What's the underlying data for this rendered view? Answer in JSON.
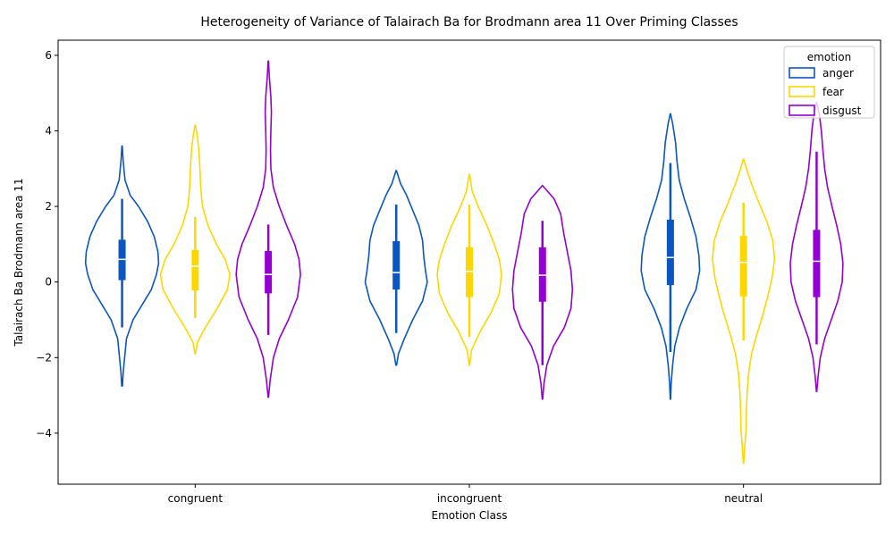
{
  "chart_data": {
    "type": "violin",
    "title": "Heterogeneity of Variance of Talairach Ba for Brodmann area 11 Over Priming Classes",
    "xlabel": "Emotion Class",
    "ylabel": "Talairach Ba Brodmann area 11",
    "categories": [
      "congruent",
      "incongruent",
      "neutral"
    ],
    "ylim": [
      -5.35,
      6.4
    ],
    "yticks": [
      -4,
      -2,
      0,
      2,
      4,
      6
    ],
    "yticks_labels": [
      "−4",
      "−2",
      "0",
      "2",
      "4",
      "6"
    ],
    "legend": {
      "title": "emotion",
      "position": "top-right"
    },
    "series": [
      {
        "name": "anger",
        "color": "#0b55c4",
        "violins": [
          {
            "min": -2.75,
            "max": 3.6,
            "q1": 0.05,
            "median": 0.6,
            "q3": 1.12,
            "whisker_low": -1.2,
            "whisker_high": 2.2,
            "density": [
              [
                -2.75,
                0.01
              ],
              [
                -2.4,
                0.03
              ],
              [
                -2.0,
                0.07
              ],
              [
                -1.5,
                0.12
              ],
              [
                -1.0,
                0.3
              ],
              [
                -0.6,
                0.55
              ],
              [
                -0.2,
                0.8
              ],
              [
                0.2,
                0.94
              ],
              [
                0.5,
                1.0
              ],
              [
                0.8,
                0.98
              ],
              [
                1.2,
                0.88
              ],
              [
                1.6,
                0.7
              ],
              [
                2.0,
                0.45
              ],
              [
                2.3,
                0.22
              ],
              [
                2.7,
                0.08
              ],
              [
                3.2,
                0.03
              ],
              [
                3.6,
                0.005
              ]
            ]
          },
          {
            "min": -2.2,
            "max": 2.95,
            "q1": -0.2,
            "median": 0.25,
            "q3": 1.08,
            "whisker_low": -1.35,
            "whisker_high": 2.05,
            "density": [
              [
                -2.2,
                0.01
              ],
              [
                -1.9,
                0.06
              ],
              [
                -1.5,
                0.22
              ],
              [
                -1.0,
                0.45
              ],
              [
                -0.5,
                0.72
              ],
              [
                0.0,
                0.85
              ],
              [
                0.3,
                0.8
              ],
              [
                0.7,
                0.75
              ],
              [
                1.1,
                0.72
              ],
              [
                1.5,
                0.62
              ],
              [
                1.9,
                0.45
              ],
              [
                2.3,
                0.28
              ],
              [
                2.6,
                0.12
              ],
              [
                2.95,
                0.005
              ]
            ]
          },
          {
            "min": -3.1,
            "max": 4.45,
            "q1": -0.08,
            "median": 0.65,
            "q3": 1.65,
            "whisker_low": -1.85,
            "whisker_high": 3.15,
            "density": [
              [
                -3.1,
                0.005
              ],
              [
                -2.7,
                0.02
              ],
              [
                -2.2,
                0.06
              ],
              [
                -1.7,
                0.12
              ],
              [
                -1.2,
                0.25
              ],
              [
                -0.7,
                0.45
              ],
              [
                -0.2,
                0.7
              ],
              [
                0.3,
                0.8
              ],
              [
                0.7,
                0.78
              ],
              [
                1.2,
                0.7
              ],
              [
                1.7,
                0.55
              ],
              [
                2.2,
                0.38
              ],
              [
                2.7,
                0.24
              ],
              [
                3.2,
                0.18
              ],
              [
                3.7,
                0.14
              ],
              [
                4.2,
                0.06
              ],
              [
                4.45,
                0.005
              ]
            ]
          }
        ]
      },
      {
        "name": "fear",
        "color": "#ffd700",
        "violins": [
          {
            "min": -1.9,
            "max": 4.15,
            "q1": -0.22,
            "median": 0.42,
            "q3": 0.85,
            "whisker_low": -0.95,
            "whisker_high": 1.72,
            "density": [
              [
                -1.9,
                0.005
              ],
              [
                -1.6,
                0.06
              ],
              [
                -1.2,
                0.28
              ],
              [
                -0.7,
                0.6
              ],
              [
                -0.2,
                0.88
              ],
              [
                0.2,
                0.95
              ],
              [
                0.6,
                0.82
              ],
              [
                1.0,
                0.58
              ],
              [
                1.5,
                0.35
              ],
              [
                2.0,
                0.2
              ],
              [
                2.5,
                0.15
              ],
              [
                3.0,
                0.13
              ],
              [
                3.5,
                0.1
              ],
              [
                3.9,
                0.05
              ],
              [
                4.15,
                0.005
              ]
            ]
          },
          {
            "min": -2.2,
            "max": 2.85,
            "q1": -0.4,
            "median": 0.28,
            "q3": 0.92,
            "whisker_low": -1.45,
            "whisker_high": 2.05,
            "density": [
              [
                -2.2,
                0.005
              ],
              [
                -1.8,
                0.06
              ],
              [
                -1.3,
                0.3
              ],
              [
                -0.8,
                0.6
              ],
              [
                -0.3,
                0.82
              ],
              [
                0.2,
                0.88
              ],
              [
                0.6,
                0.82
              ],
              [
                1.0,
                0.68
              ],
              [
                1.5,
                0.48
              ],
              [
                2.0,
                0.24
              ],
              [
                2.4,
                0.08
              ],
              [
                2.85,
                0.005
              ]
            ]
          },
          {
            "min": -4.8,
            "max": 3.25,
            "q1": -0.38,
            "median": 0.52,
            "q3": 1.22,
            "whisker_low": -1.55,
            "whisker_high": 2.1,
            "density": [
              [
                -4.8,
                0.005
              ],
              [
                -4.4,
                0.03
              ],
              [
                -3.9,
                0.07
              ],
              [
                -3.4,
                0.08
              ],
              [
                -2.9,
                0.1
              ],
              [
                -2.4,
                0.14
              ],
              [
                -1.9,
                0.22
              ],
              [
                -1.4,
                0.36
              ],
              [
                -0.9,
                0.52
              ],
              [
                -0.4,
                0.66
              ],
              [
                0.1,
                0.78
              ],
              [
                0.6,
                0.85
              ],
              [
                1.1,
                0.8
              ],
              [
                1.6,
                0.64
              ],
              [
                2.1,
                0.42
              ],
              [
                2.6,
                0.22
              ],
              [
                3.0,
                0.08
              ],
              [
                3.25,
                0.005
              ]
            ]
          }
        ]
      },
      {
        "name": "disgust",
        "color": "#9400d3",
        "violins": [
          {
            "min": -3.05,
            "max": 5.85,
            "q1": -0.3,
            "median": 0.2,
            "q3": 0.82,
            "whisker_low": -1.4,
            "whisker_high": 1.52,
            "density": [
              [
                -3.05,
                0.005
              ],
              [
                -2.6,
                0.05
              ],
              [
                -2.0,
                0.14
              ],
              [
                -1.5,
                0.3
              ],
              [
                -1.0,
                0.55
              ],
              [
                -0.4,
                0.8
              ],
              [
                0.2,
                0.88
              ],
              [
                0.6,
                0.84
              ],
              [
                1.0,
                0.72
              ],
              [
                1.5,
                0.5
              ],
              [
                2.0,
                0.3
              ],
              [
                2.5,
                0.14
              ],
              [
                3.0,
                0.07
              ],
              [
                3.5,
                0.06
              ],
              [
                4.0,
                0.07
              ],
              [
                4.5,
                0.085
              ],
              [
                4.9,
                0.07
              ],
              [
                5.4,
                0.03
              ],
              [
                5.85,
                0.005
              ]
            ]
          },
          {
            "min": -3.1,
            "max": 2.55,
            "q1": -0.52,
            "median": 0.18,
            "q3": 0.92,
            "whisker_low": -2.2,
            "whisker_high": 1.62,
            "density": [
              [
                -3.1,
                0.005
              ],
              [
                -2.7,
                0.04
              ],
              [
                -2.2,
                0.12
              ],
              [
                -1.7,
                0.3
              ],
              [
                -1.2,
                0.6
              ],
              [
                -0.7,
                0.78
              ],
              [
                -0.2,
                0.82
              ],
              [
                0.3,
                0.78
              ],
              [
                0.8,
                0.68
              ],
              [
                1.3,
                0.58
              ],
              [
                1.8,
                0.5
              ],
              [
                2.2,
                0.32
              ],
              [
                2.55,
                0.005
              ]
            ]
          },
          {
            "min": -2.9,
            "max": 4.75,
            "q1": -0.4,
            "median": 0.55,
            "q3": 1.38,
            "whisker_low": -1.65,
            "whisker_high": 3.45,
            "density": [
              [
                -2.9,
                0.005
              ],
              [
                -2.5,
                0.04
              ],
              [
                -2.0,
                0.1
              ],
              [
                -1.5,
                0.22
              ],
              [
                -1.0,
                0.4
              ],
              [
                -0.5,
                0.58
              ],
              [
                0.0,
                0.7
              ],
              [
                0.5,
                0.72
              ],
              [
                1.0,
                0.66
              ],
              [
                1.5,
                0.55
              ],
              [
                2.0,
                0.42
              ],
              [
                2.5,
                0.3
              ],
              [
                3.0,
                0.22
              ],
              [
                3.5,
                0.17
              ],
              [
                4.0,
                0.13
              ],
              [
                4.4,
                0.08
              ],
              [
                4.75,
                0.005
              ]
            ]
          }
        ]
      }
    ]
  }
}
